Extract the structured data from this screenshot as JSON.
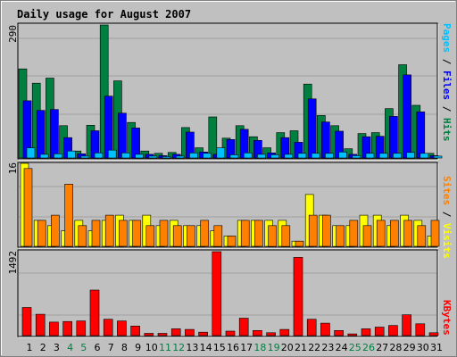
{
  "chart_data": [
    {
      "type": "bar",
      "title": "Daily usage for August 2007",
      "ymax_label": "290",
      "ylim": [
        0,
        290
      ],
      "grid": true,
      "categories": [
        "1",
        "2",
        "3",
        "4",
        "5",
        "6",
        "7",
        "8",
        "9",
        "10",
        "11",
        "12",
        "13",
        "14",
        "15",
        "16",
        "17",
        "18",
        "19",
        "20",
        "21",
        "22",
        "23",
        "24",
        "25",
        "26",
        "27",
        "28",
        "29",
        "30",
        "31"
      ],
      "weekend_days": [
        "4",
        "5",
        "11",
        "12",
        "18",
        "19",
        "25",
        "26"
      ],
      "side_labels": {
        "pages": "Pages",
        "files": "Files",
        "hits": "Hits",
        "sep": " / "
      },
      "series": [
        {
          "name": "Hits",
          "color": "#008040",
          "values": [
            193,
            162,
            173,
            70,
            15,
            71,
            288,
            167,
            77,
            15,
            10,
            12,
            66,
            22,
            89,
            43,
            70,
            46,
            22,
            55,
            59,
            160,
            92,
            70,
            20,
            53,
            55,
            107,
            202,
            114,
            10
          ]
        },
        {
          "name": "Files",
          "color": "#0000ff",
          "values": [
            124,
            103,
            105,
            44,
            9,
            59,
            134,
            97,
            65,
            8,
            5,
            8,
            56,
            13,
            8,
            40,
            62,
            38,
            11,
            44,
            34,
            128,
            78,
            58,
            8,
            46,
            47,
            90,
            180,
            100,
            5
          ]
        },
        {
          "name": "Pages",
          "color": "#00c0ff",
          "values": [
            22,
            8,
            9,
            15,
            4,
            11,
            17,
            11,
            8,
            4,
            3,
            4,
            11,
            10,
            22,
            7,
            11,
            8,
            7,
            8,
            10,
            10,
            10,
            13,
            5,
            10,
            10,
            10,
            12,
            10,
            4
          ]
        }
      ]
    },
    {
      "type": "bar",
      "ymax_label": "16",
      "ylim": [
        0,
        16
      ],
      "grid": true,
      "side_labels": {
        "sites": "Sites",
        "visits": "Visits",
        "sep": " / "
      },
      "series": [
        {
          "name": "Visits",
          "color": "#ffff00",
          "values": [
            16,
            5,
            4,
            3,
            5,
            3,
            5,
            6,
            5,
            6,
            4,
            5,
            4,
            4,
            3,
            2,
            5,
            5,
            5,
            5,
            1,
            10,
            6,
            4,
            4,
            6,
            6,
            4,
            6,
            5,
            2
          ]
        },
        {
          "name": "Sites",
          "color": "#ff8000",
          "values": [
            15,
            5,
            6,
            12,
            4,
            5,
            6,
            5,
            5,
            4,
            5,
            4,
            4,
            5,
            4,
            2,
            5,
            5,
            4,
            4,
            1,
            6,
            6,
            4,
            5,
            4,
            5,
            5,
            5,
            4,
            5
          ]
        }
      ]
    },
    {
      "type": "bar",
      "ymax_label": "1492",
      "ylim": [
        0,
        1492
      ],
      "grid": true,
      "side_labels": {
        "kbytes": "KBytes"
      },
      "series": [
        {
          "name": "KBytes",
          "color": "#ff0000",
          "values": [
            500,
            380,
            240,
            250,
            260,
            810,
            290,
            260,
            170,
            40,
            40,
            120,
            110,
            60,
            1492,
            80,
            310,
            90,
            50,
            110,
            1390,
            290,
            220,
            90,
            30,
            120,
            150,
            180,
            370,
            210,
            50
          ]
        }
      ]
    }
  ],
  "colors": {
    "title": "#0000ff",
    "axis_label": "#000000",
    "weekend_label": "#008040",
    "grid": "#a0a0a0",
    "plot_bg": "#c0c0c0"
  }
}
